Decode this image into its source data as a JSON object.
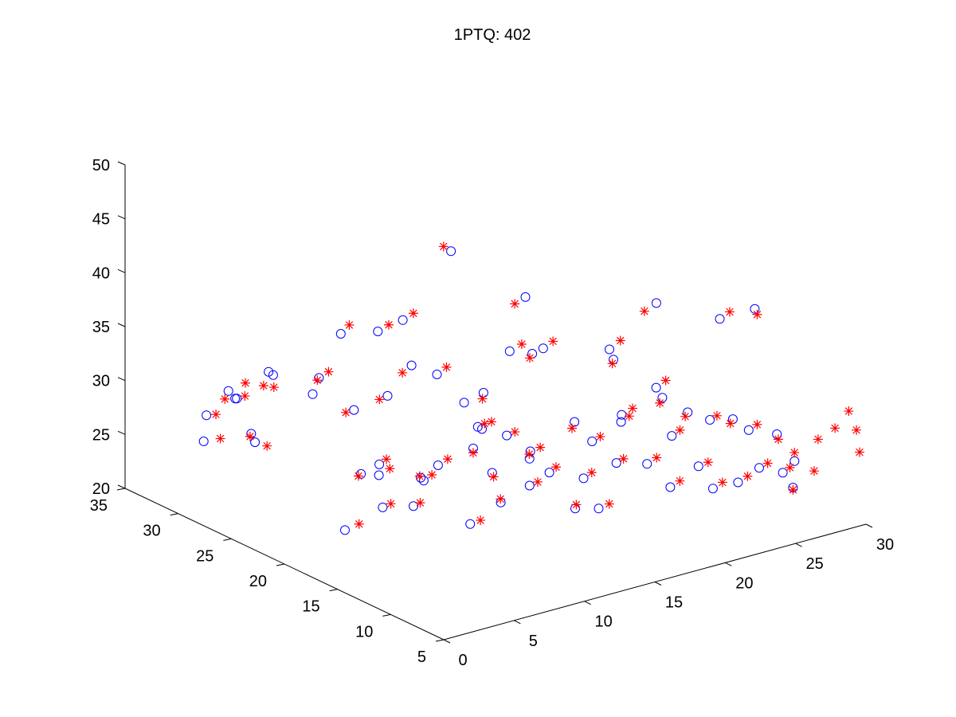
{
  "chart_data": {
    "type": "scatter",
    "projection": "3d",
    "title": "1PTQ: 402",
    "grid": false,
    "xlim": [
      0,
      30
    ],
    "ylim": [
      5,
      35
    ],
    "zlim": [
      20,
      50
    ],
    "x_ticks": [
      0,
      5,
      10,
      15,
      20,
      25,
      30
    ],
    "y_ticks": [
      5,
      10,
      15,
      20,
      25,
      30,
      35
    ],
    "z_ticks": [
      20,
      25,
      30,
      35,
      40,
      45,
      50
    ],
    "x_tick_labels": [
      "0",
      "5",
      "10",
      "15",
      "20",
      "25",
      "30"
    ],
    "y_tick_labels": [
      "5",
      "10",
      "15",
      "20",
      "25",
      "30",
      "35"
    ],
    "z_tick_labels": [
      "20",
      "25",
      "30",
      "35",
      "40",
      "45",
      "50"
    ],
    "series": [
      {
        "marker": "circle",
        "color": "#0000ff",
        "points": [
          [
            0.7,
            26.2,
            32.9
          ],
          [
            1.1,
            26.1,
            32.1
          ],
          [
            1.4,
            29.2,
            29.0
          ],
          [
            2.2,
            27.4,
            31.1
          ],
          [
            2.6,
            24.5,
            34.5
          ],
          [
            3.1,
            25.6,
            34.1
          ],
          [
            3.3,
            27.5,
            27.4
          ],
          [
            3.4,
            32.1,
            24.5
          ],
          [
            4.2,
            22.9,
            32.9
          ],
          [
            4.4,
            28.6,
            25.7
          ],
          [
            5.1,
            23.5,
            33.8
          ],
          [
            6.3,
            21.8,
            31.2
          ],
          [
            6.8,
            19.3,
            33.5
          ],
          [
            7.3,
            17.7,
            36.9
          ],
          [
            7.4,
            22.6,
            24.5
          ],
          [
            7.8,
            21.4,
            25.8
          ],
          [
            8.1,
            17.9,
            26.1
          ],
          [
            8.3,
            25.3,
            17.7
          ],
          [
            8.6,
            22.5,
            24.0
          ],
          [
            9.4,
            23.2,
            20.4
          ],
          [
            9.9,
            20.0,
            24.2
          ],
          [
            10.3,
            21.5,
            21.0
          ],
          [
            10.6,
            15.3,
            34.3
          ],
          [
            11.1,
            16.5,
            30.4
          ],
          [
            11.3,
            17.2,
            28.0
          ],
          [
            11.8,
            12.3,
            38.9
          ],
          [
            12.4,
            15.5,
            29.6
          ],
          [
            12.5,
            17.0,
            25.4
          ],
          [
            13.2,
            20.0,
            19.0
          ],
          [
            13.4,
            14.6,
            28.2
          ],
          [
            14.1,
            15.6,
            24.3
          ],
          [
            14.6,
            14.4,
            25.9
          ],
          [
            14.8,
            12.3,
            31.5
          ],
          [
            15.3,
            9.3,
            38.5
          ],
          [
            15.9,
            12.1,
            29.4
          ],
          [
            16.2,
            13.3,
            25.3
          ],
          [
            16.9,
            10.7,
            31.5
          ],
          [
            17.4,
            11.8,
            27.0
          ],
          [
            17.8,
            14.0,
            21.6
          ],
          [
            18.4,
            8.8,
            34.1
          ],
          [
            18.9,
            10.9,
            26.8
          ],
          [
            19.6,
            9.5,
            29.8
          ],
          [
            19.9,
            8.4,
            32.4
          ],
          [
            20.4,
            10.7,
            24.2
          ],
          [
            21.1,
            7.9,
            31.5
          ],
          [
            21.5,
            9.5,
            26.3
          ],
          [
            22.2,
            7.2,
            31.5
          ],
          [
            22.6,
            9.6,
            23.8
          ],
          [
            23.1,
            6.9,
            30.3
          ],
          [
            23.7,
            8.7,
            24.4
          ],
          [
            24.3,
            7.5,
            26.1
          ],
          [
            24.5,
            6.1,
            29.8
          ],
          [
            25.3,
            6.6,
            25.7
          ],
          [
            25.6,
            5.9,
            27.0
          ],
          [
            26.1,
            6.7,
            24.0
          ],
          [
            6.4,
            12.8,
            50.1
          ],
          [
            9.8,
            10.3,
            45.8
          ],
          [
            13.1,
            13.0,
            38.6
          ],
          [
            17.6,
            8.3,
            43.4
          ],
          [
            21.2,
            7.1,
            41.2
          ],
          [
            22.7,
            5.8,
            42.2
          ],
          [
            20.3,
            11.9,
            32.9
          ],
          [
            16.0,
            10.6,
            38.6
          ],
          [
            12.0,
            17.3,
            29.5
          ],
          [
            8.5,
            16.9,
            36.0
          ],
          [
            10.5,
            12.7,
            39.4
          ],
          [
            14.4,
            16.0,
            26.5
          ],
          [
            18.0,
            12.1,
            31.1
          ],
          [
            19.0,
            17.8,
            19.4
          ],
          [
            15.6,
            20.3,
            20.0
          ],
          [
            6.9,
            18.0,
            41.1
          ],
          [
            11.6,
            20.9,
            24.6
          ],
          [
            4.6,
            17.3,
            41.2
          ],
          [
            2.8,
            18.4,
            41.1
          ],
          [
            9.3,
            15.4,
            33.8
          ]
        ]
      },
      {
        "marker": "asterisk",
        "color": "#ff0000",
        "points": [
          [
            0.9,
            26.8,
            31.8
          ],
          [
            1.3,
            25.4,
            33.8
          ],
          [
            1.7,
            28.7,
            29.2
          ],
          [
            2.4,
            26.9,
            31.5
          ],
          [
            2.8,
            24.7,
            33.2
          ],
          [
            3.2,
            26.2,
            32.5
          ],
          [
            3.6,
            28.0,
            26.8
          ],
          [
            3.9,
            31.2,
            25.0
          ],
          [
            4.3,
            22.6,
            34.3
          ],
          [
            4.8,
            28.0,
            25.5
          ],
          [
            5.4,
            23.0,
            34.5
          ],
          [
            6.1,
            22.3,
            30.8
          ],
          [
            6.6,
            19.8,
            33.0
          ],
          [
            7.1,
            18.3,
            36.0
          ],
          [
            7.6,
            23.1,
            24.0
          ],
          [
            8.0,
            21.0,
            26.4
          ],
          [
            8.4,
            18.4,
            25.9
          ],
          [
            8.7,
            24.5,
            18.5
          ],
          [
            9.0,
            22.0,
            24.7
          ],
          [
            9.6,
            22.7,
            20.9
          ],
          [
            10.1,
            19.5,
            24.9
          ],
          [
            10.4,
            21.0,
            21.5
          ],
          [
            10.9,
            15.8,
            33.4
          ],
          [
            11.2,
            16.0,
            30.9
          ],
          [
            11.6,
            17.6,
            27.3
          ],
          [
            12.0,
            12.8,
            38.2
          ],
          [
            12.6,
            15.0,
            30.1
          ],
          [
            12.9,
            17.4,
            24.7
          ],
          [
            13.4,
            19.3,
            19.6
          ],
          [
            13.8,
            14.2,
            28.6
          ],
          [
            14.3,
            15.1,
            24.8
          ],
          [
            14.7,
            13.9,
            26.6
          ],
          [
            15.0,
            12.8,
            30.6
          ],
          [
            15.6,
            9.8,
            37.8
          ],
          [
            16.1,
            11.6,
            30.0
          ],
          [
            16.4,
            12.8,
            26.0
          ],
          [
            17.1,
            10.2,
            32.2
          ],
          [
            17.6,
            11.4,
            27.5
          ],
          [
            18.1,
            13.4,
            22.2
          ],
          [
            18.6,
            9.3,
            33.3
          ],
          [
            19.2,
            10.4,
            27.5
          ],
          [
            19.8,
            9.0,
            30.5
          ],
          [
            20.1,
            8.9,
            31.7
          ],
          [
            20.7,
            10.2,
            24.9
          ],
          [
            21.3,
            7.5,
            32.0
          ],
          [
            21.8,
            9.0,
            26.8
          ],
          [
            22.4,
            7.7,
            30.8
          ],
          [
            22.9,
            9.1,
            24.5
          ],
          [
            23.4,
            6.5,
            30.9
          ],
          [
            24.0,
            8.2,
            25.1
          ],
          [
            24.6,
            7.1,
            26.6
          ],
          [
            24.9,
            6.5,
            29.0
          ],
          [
            25.5,
            6.2,
            26.3
          ],
          [
            25.9,
            6.3,
            27.5
          ],
          [
            26.4,
            7.1,
            23.5
          ],
          [
            27.2,
            5.8,
            28.5
          ],
          [
            28.1,
            5.4,
            29.4
          ],
          [
            29.4,
            5.1,
            28.9
          ],
          [
            30.0,
            5.6,
            26.4
          ],
          [
            28.7,
            4.9,
            31.0
          ],
          [
            27.6,
            6.7,
            25.0
          ],
          [
            6.1,
            13.1,
            50.5
          ],
          [
            9.5,
            10.9,
            45.0
          ],
          [
            13.5,
            12.6,
            39.3
          ],
          [
            17.2,
            8.9,
            42.5
          ],
          [
            21.6,
            6.7,
            41.9
          ],
          [
            23.1,
            6.1,
            41.4
          ],
          [
            20.6,
            11.4,
            33.7
          ],
          [
            16.4,
            10.1,
            39.5
          ],
          [
            12.3,
            16.8,
            30.3
          ],
          [
            8.8,
            16.4,
            36.8
          ],
          [
            10.9,
            12.1,
            40.2
          ],
          [
            14.0,
            15.5,
            27.3
          ],
          [
            18.4,
            11.6,
            31.8
          ],
          [
            18.7,
            17.3,
            20.1
          ],
          [
            15.2,
            19.8,
            20.7
          ],
          [
            7.2,
            17.4,
            41.9
          ],
          [
            11.9,
            20.4,
            25.3
          ],
          [
            5.0,
            16.8,
            41.9
          ],
          [
            3.1,
            18.0,
            42.0
          ]
        ]
      }
    ]
  }
}
